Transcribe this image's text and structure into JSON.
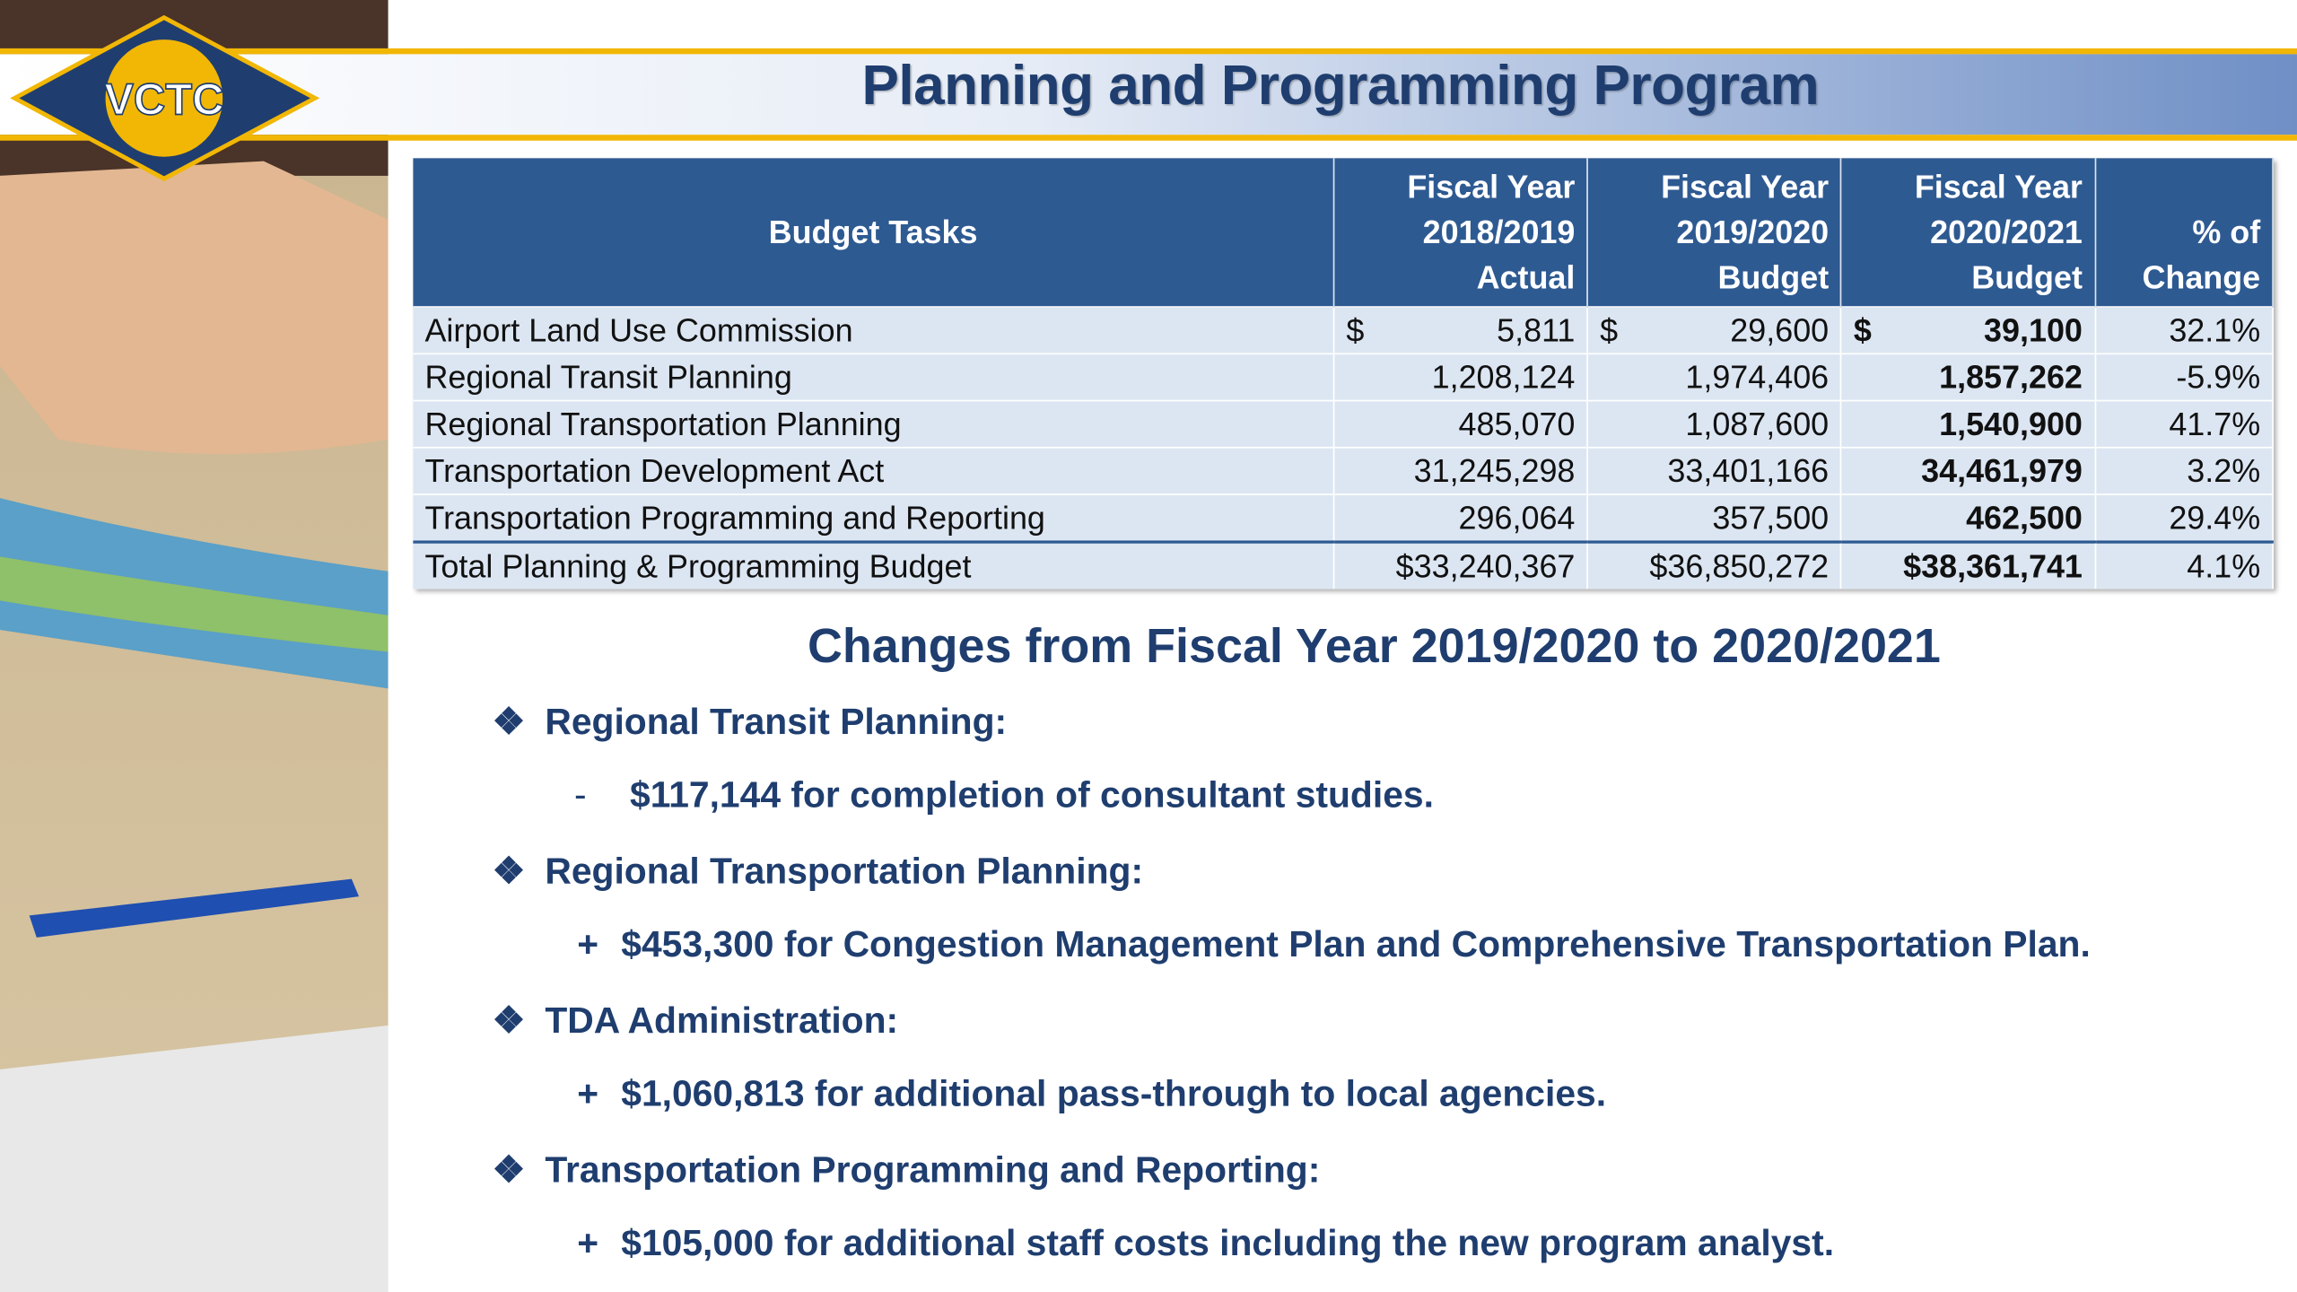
{
  "header": {
    "logo": "VCTC",
    "title": "Planning and Programming Program"
  },
  "table": {
    "columns": [
      [
        "Budget Tasks"
      ],
      [
        "Fiscal Year",
        "2018/2019",
        "Actual"
      ],
      [
        "Fiscal Year",
        "2019/2020",
        "Budget"
      ],
      [
        "Fiscal Year",
        "2020/2021",
        "Budget"
      ],
      [
        "% of",
        "Change"
      ]
    ],
    "currency": "$",
    "rows": [
      [
        "Airport Land Use Commission",
        "5,811",
        "29,600",
        "39,100",
        "32.1%"
      ],
      [
        "Regional Transit Planning",
        "1,208,124",
        "1,974,406",
        "1,857,262",
        "-5.9%"
      ],
      [
        "Regional Transportation Planning",
        "485,070",
        "1,087,600",
        "1,540,900",
        "41.7%"
      ],
      [
        "Transportation Development Act",
        "31,245,298",
        "33,401,166",
        "34,461,979",
        "3.2%"
      ],
      [
        "Transportation Programming and Reporting",
        "296,064",
        "357,500",
        "462,500",
        "29.4%"
      ],
      [
        "Total Planning & Programming Budget",
        "$33,240,367",
        "$36,850,272",
        "$38,361,741",
        "4.1%"
      ]
    ]
  },
  "changes": {
    "title": "Changes from Fiscal Year 2019/2020 to 2020/2021",
    "items": [
      {
        "heading": "Regional Transit Planning:",
        "sign": "-",
        "detail": "$117,144 for completion of consultant studies."
      },
      {
        "heading": "Regional Transportation Planning:",
        "sign": "+",
        "detail": "$453,300 for Congestion Management Plan and Comprehensive Transportation Plan."
      },
      {
        "heading": "TDA Administration:",
        "sign": "+",
        "detail": "$1,060,813 for additional pass-through to local agencies."
      },
      {
        "heading": "Transportation Programming and Reporting:",
        "sign": "+",
        "detail": "$105,000 for additional staff costs including the new program analyst."
      }
    ]
  }
}
